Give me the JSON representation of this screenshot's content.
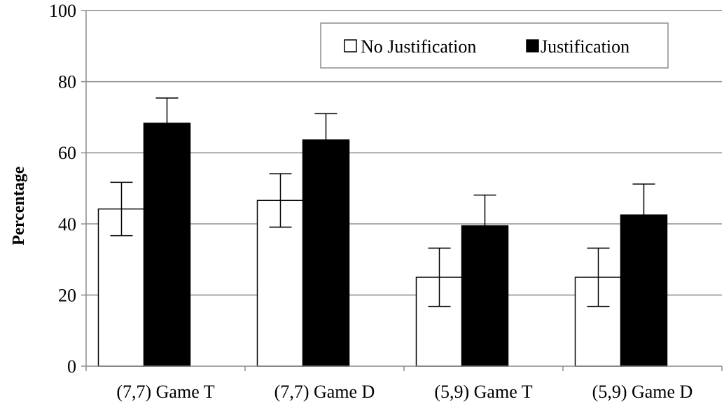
{
  "chart_data": {
    "type": "bar",
    "categories": [
      "(7,7) Game T",
      "(7,7) Game D",
      "(5,9) Game T",
      "(5,9) Game D"
    ],
    "series": [
      {
        "name": "No Justification",
        "values": [
          44.2,
          46.6,
          25.0,
          25.0
        ],
        "error": [
          7.5,
          7.5,
          8.2,
          8.2
        ],
        "fill": "#ffffff"
      },
      {
        "name": "Justification",
        "values": [
          68.3,
          63.6,
          39.5,
          42.5
        ],
        "error": [
          7.1,
          7.4,
          8.6,
          8.7
        ],
        "fill": "#000000"
      }
    ],
    "xlabel": "",
    "ylabel": "Percentage",
    "ylim": [
      0,
      100
    ],
    "yticks": [
      0,
      20,
      40,
      60,
      80,
      100
    ],
    "grid": true,
    "legend": "top-right"
  },
  "colors": {
    "grid": "#8c8c8c",
    "axis": "#8c8c8c",
    "bar_edge": "#000000"
  }
}
